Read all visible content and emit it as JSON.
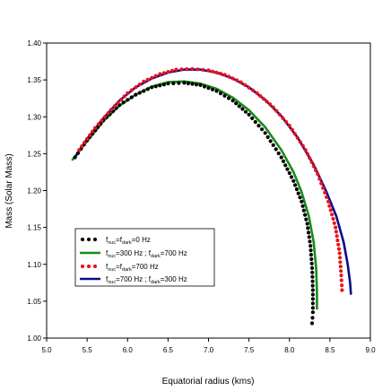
{
  "chart_data": {
    "type": "line",
    "xlabel": "Equatorial radius (kms)",
    "ylabel": "Mass (Solar Mass)",
    "xlim": [
      5.0,
      9.0
    ],
    "ylim": [
      1.0,
      1.4
    ],
    "x_ticks": [
      "5.0",
      "5.5",
      "6.0",
      "6.5",
      "7.0",
      "7.5",
      "8.0",
      "8.5",
      "9.0"
    ],
    "y_ticks": [
      "1.00",
      "1.05",
      "1.10",
      "1.15",
      "1.20",
      "1.25",
      "1.30",
      "1.35",
      "1.40"
    ],
    "legend_position": "bottom-left",
    "grid": false,
    "series": [
      {
        "name": "f_nuc=f_dark=0 Hz",
        "legend_main": "f",
        "legend_sub1": "nuc",
        "legend_mid": "=f",
        "legend_sub2": "dark",
        "legend_tail": "=0 Hz",
        "style": "dots",
        "color": "#000000",
        "points": [
          [
            5.35,
            1.245
          ],
          [
            5.5,
            1.268
          ],
          [
            5.7,
            1.295
          ],
          [
            5.9,
            1.316
          ],
          [
            6.1,
            1.33
          ],
          [
            6.3,
            1.34
          ],
          [
            6.5,
            1.345
          ],
          [
            6.7,
            1.346
          ],
          [
            6.9,
            1.343
          ],
          [
            7.1,
            1.335
          ],
          [
            7.3,
            1.322
          ],
          [
            7.5,
            1.303
          ],
          [
            7.7,
            1.278
          ],
          [
            7.9,
            1.245
          ],
          [
            8.05,
            1.213
          ],
          [
            8.15,
            1.185
          ],
          [
            8.22,
            1.155
          ],
          [
            8.26,
            1.125
          ],
          [
            8.28,
            1.095
          ],
          [
            8.29,
            1.065
          ],
          [
            8.29,
            1.035
          ],
          [
            8.28,
            1.02
          ]
        ]
      },
      {
        "name": "f_nuc=300 Hz ; f_dark=700 Hz",
        "legend_main": "f",
        "legend_sub1": "nuc",
        "legend_mid": "=300 Hz ; f",
        "legend_sub2": "dark",
        "legend_tail": "=700 Hz",
        "style": "line",
        "color": "#1a8a1a",
        "points": [
          [
            5.32,
            1.242
          ],
          [
            5.5,
            1.267
          ],
          [
            5.7,
            1.294
          ],
          [
            5.9,
            1.315
          ],
          [
            6.1,
            1.33
          ],
          [
            6.3,
            1.341
          ],
          [
            6.5,
            1.347
          ],
          [
            6.7,
            1.348
          ],
          [
            6.9,
            1.345
          ],
          [
            7.1,
            1.338
          ],
          [
            7.3,
            1.326
          ],
          [
            7.5,
            1.309
          ],
          [
            7.7,
            1.286
          ],
          [
            7.9,
            1.255
          ],
          [
            8.05,
            1.225
          ],
          [
            8.15,
            1.198
          ],
          [
            8.24,
            1.165
          ],
          [
            8.3,
            1.13
          ],
          [
            8.33,
            1.095
          ],
          [
            8.34,
            1.065
          ],
          [
            8.34,
            1.04
          ]
        ]
      },
      {
        "name": "f_nuc=f_dark=700 Hz",
        "legend_main": "f",
        "legend_sub1": "nuc",
        "legend_mid": "=f",
        "legend_sub2": "dark",
        "legend_tail": "=700 Hz",
        "style": "dots",
        "color": "#e8141a",
        "points": [
          [
            5.4,
            1.255
          ],
          [
            5.6,
            1.285
          ],
          [
            5.8,
            1.31
          ],
          [
            6.0,
            1.332
          ],
          [
            6.2,
            1.348
          ],
          [
            6.4,
            1.358
          ],
          [
            6.6,
            1.364
          ],
          [
            6.8,
            1.365
          ],
          [
            7.0,
            1.363
          ],
          [
            7.2,
            1.357
          ],
          [
            7.4,
            1.347
          ],
          [
            7.6,
            1.332
          ],
          [
            7.8,
            1.313
          ],
          [
            8.0,
            1.288
          ],
          [
            8.2,
            1.255
          ],
          [
            8.35,
            1.222
          ],
          [
            8.48,
            1.185
          ],
          [
            8.57,
            1.15
          ],
          [
            8.62,
            1.115
          ],
          [
            8.64,
            1.085
          ],
          [
            8.65,
            1.065
          ]
        ]
      },
      {
        "name": "f_nuc=700 Hz ; f_dark=300 Hz",
        "legend_main": "f",
        "legend_sub1": "nuc",
        "legend_mid": "=700 Hz ; f",
        "legend_sub2": "dark",
        "legend_tail": "=300 Hz",
        "style": "line",
        "color": "#0a0a8c",
        "points": [
          [
            5.35,
            1.245
          ],
          [
            5.5,
            1.27
          ],
          [
            5.7,
            1.298
          ],
          [
            5.9,
            1.322
          ],
          [
            6.1,
            1.34
          ],
          [
            6.3,
            1.352
          ],
          [
            6.5,
            1.36
          ],
          [
            6.7,
            1.364
          ],
          [
            6.9,
            1.364
          ],
          [
            7.1,
            1.36
          ],
          [
            7.3,
            1.352
          ],
          [
            7.5,
            1.34
          ],
          [
            7.7,
            1.323
          ],
          [
            7.9,
            1.301
          ],
          [
            8.1,
            1.272
          ],
          [
            8.3,
            1.235
          ],
          [
            8.45,
            1.2
          ],
          [
            8.58,
            1.165
          ],
          [
            8.67,
            1.13
          ],
          [
            8.72,
            1.1
          ],
          [
            8.75,
            1.075
          ],
          [
            8.76,
            1.06
          ]
        ]
      }
    ]
  }
}
